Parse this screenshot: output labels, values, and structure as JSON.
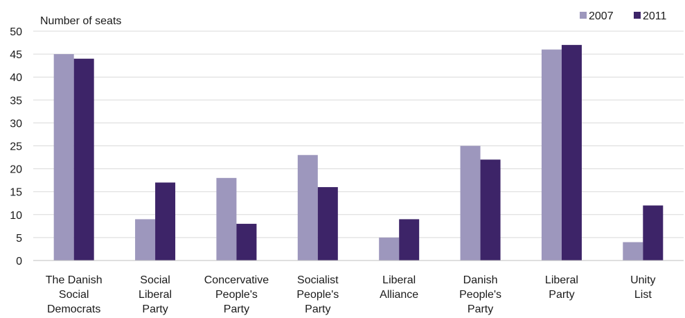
{
  "chart_data": {
    "type": "bar",
    "ylabel": "Number of seats",
    "ylim": [
      0,
      50
    ],
    "yticks": [
      0,
      5,
      10,
      15,
      20,
      25,
      30,
      35,
      40,
      45,
      50
    ],
    "grid": true,
    "legend_position": "top-right",
    "categories": [
      [
        "The Danish",
        "Social",
        "Democrats"
      ],
      [
        "Social",
        "Liberal",
        "Party"
      ],
      [
        "Concervative",
        "People's",
        "Party"
      ],
      [
        "Socialist",
        "People's",
        "Party"
      ],
      [
        "Liberal",
        "Alliance"
      ],
      [
        "Danish",
        "People's",
        "Party"
      ],
      [
        "Liberal",
        "Party"
      ],
      [
        "Unity",
        "List"
      ]
    ],
    "series": [
      {
        "name": "2007",
        "color": "#9d97bd",
        "values": [
          45,
          9,
          18,
          23,
          5,
          25,
          46,
          4
        ]
      },
      {
        "name": "2011",
        "color": "#3d2468",
        "values": [
          44,
          17,
          8,
          16,
          9,
          22,
          47,
          12
        ]
      }
    ]
  }
}
